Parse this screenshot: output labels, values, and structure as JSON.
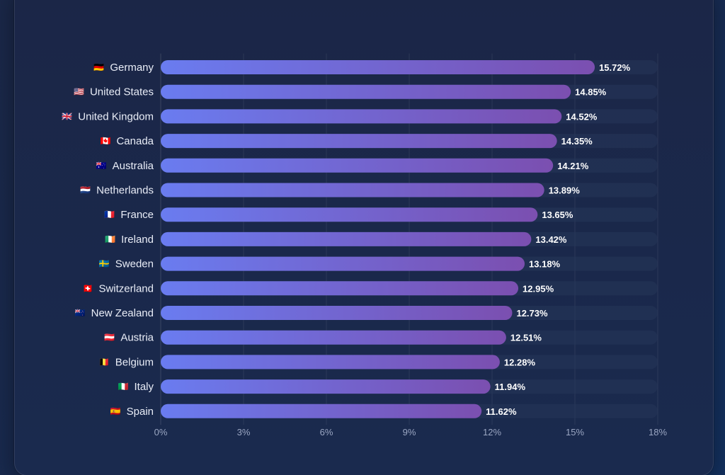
{
  "chart_data": {
    "type": "bar",
    "orientation": "horizontal",
    "title": "",
    "xlabel": "",
    "ylabel": "",
    "xlim": [
      0,
      18
    ],
    "x_ticks": [
      "0%",
      "3%",
      "6%",
      "9%",
      "12%",
      "15%",
      "18%"
    ],
    "x_tick_values": [
      0,
      3,
      6,
      9,
      12,
      15,
      18
    ],
    "grid": true,
    "legend": "none",
    "categories": [
      "Germany",
      "United States",
      "United Kingdom",
      "Canada",
      "Australia",
      "Netherlands",
      "France",
      "Ireland",
      "Sweden",
      "Switzerland",
      "New Zealand",
      "Austria",
      "Belgium",
      "Italy",
      "Spain"
    ],
    "flags": [
      "🇩🇪",
      "🇺🇸",
      "🇬🇧",
      "🇨🇦",
      "🇦🇺",
      "🇳🇱",
      "🇫🇷",
      "🇮🇪",
      "🇸🇪",
      "🇨🇭",
      "🇳🇿",
      "🇦🇹",
      "🇧🇪",
      "🇮🇹",
      "🇪🇸"
    ],
    "values": [
      15.72,
      14.85,
      14.52,
      14.35,
      14.21,
      13.89,
      13.65,
      13.42,
      13.18,
      12.95,
      12.73,
      12.51,
      12.28,
      11.94,
      11.62
    ],
    "value_labels": [
      "15.72%",
      "14.85%",
      "14.52%",
      "14.35%",
      "14.21%",
      "13.89%",
      "13.65%",
      "13.42%",
      "13.18%",
      "12.95%",
      "12.73%",
      "12.51%",
      "12.28%",
      "11.94%",
      "11.62%"
    ],
    "colors": {
      "bar_start": "#6a7cf0",
      "bar_end": "#7b4fb0",
      "track": "#26365a",
      "text": "#e9edf7",
      "tick": "#9aa6c2"
    }
  }
}
